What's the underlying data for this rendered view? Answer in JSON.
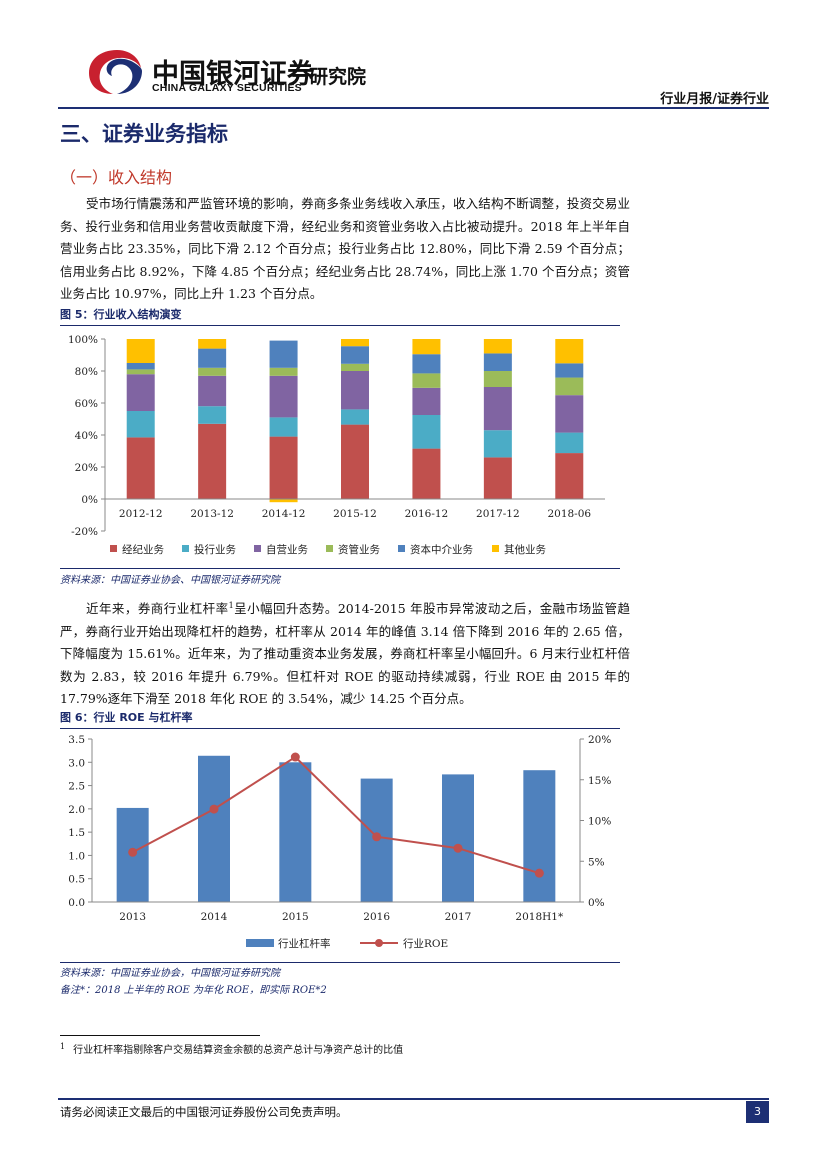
{
  "header": {
    "brand_cn": "中国银河证券",
    "brand_en": "CHINA GALAXY SECURITIES",
    "institute": "研究院",
    "report_type": "行业月报/证券行业"
  },
  "section_title": "三、证券业务指标",
  "sub_title": "（一）收入结构",
  "para1": "受市场行情震荡和严监管环境的影响，券商多条业务线收入承压，收入结构不断调整，投资交易业务、投行业务和信用业务营收贡献度下滑，经纪业务和资管业务收入占比被动提升。2018 年上半年自营业务占比 23.35%，同比下滑 2.12 个百分点；投行业务占比 12.80%，同比下滑 2.59 个百分点；信用业务占比 8.92%，下降 4.85 个百分点；经纪业务占比 28.74%，同比上涨 1.70 个百分点；资管业务占比 10.97%，同比上升 1.23 个百分点。",
  "fig5_title": "图 5：行业收入结构演变",
  "fig5_source": "资料来源：中国证券业协会、中国银河证券研究院",
  "para2_a": "近年来，券商行业杠杆率",
  "para2_sup": "1",
  "para2_b": "呈小幅回升态势。2014-2015 年股市异常波动之后，金融市场监管趋严，券商行业开始出现降杠杆的趋势，杠杆率从 2014 年的峰值 3.14 倍下降到 2016 年的 2.65 倍，下降幅度为 15.61%。近年来，为了推动重资本业务发展，券商杠杆率呈小幅回升。6 月末行业杠杆倍数为 2.83，较 2016 年提升 6.79%。但杠杆对 ROE 的驱动持续减弱，行业 ROE 由 2015 年的 17.79%逐年下滑至 2018 年化 ROE 的 3.54%，减少 14.25 个百分点。",
  "fig6_title": "图 6：行业 ROE 与杠杆率",
  "fig6_source": "资料来源：中国证券业协会，中国银河证券研究院",
  "fig6_note": "备注*：2018 上半年的 ROE 为年化 ROE，即实际 ROE*2",
  "footnote_num": "1",
  "footnote": "行业杠杆率指剔除客户交易结算资金余额的总资产总计与净资产总计的比值",
  "footer": {
    "disclaimer": "请务必阅读正文最后的中国银河证券股份公司免责声明。",
    "page": "3"
  },
  "colors": {
    "brand_navy": "#1d2f74",
    "logo_red": "#c8202f",
    "heading_red": "#c0392b"
  },
  "chart_data": [
    {
      "type": "bar",
      "stacked": true,
      "title": "图 5：行业收入结构演变",
      "categories": [
        "2012-12",
        "2013-12",
        "2014-12",
        "2015-12",
        "2016-12",
        "2017-12",
        "2018-06"
      ],
      "ylim": [
        -20,
        100
      ],
      "yticks": [
        "-20%",
        "0%",
        "20%",
        "40%",
        "60%",
        "80%",
        "100%"
      ],
      "series": [
        {
          "name": "经纪业务",
          "color": "#c0504d",
          "values": [
            38.5,
            47,
            39,
            46.5,
            31.5,
            26,
            28.7
          ]
        },
        {
          "name": "投行业务",
          "color": "#4bacc6",
          "values": [
            16.5,
            11,
            12,
            9.5,
            21,
            17,
            12.8
          ]
        },
        {
          "name": "自营业务",
          "color": "#8064a2",
          "values": [
            23,
            19,
            26,
            24,
            17,
            27,
            23.4
          ]
        },
        {
          "name": "资管业务",
          "color": "#9bbb59",
          "values": [
            3,
            5,
            5,
            4.5,
            9,
            10,
            11
          ]
        },
        {
          "name": "资本中介业务",
          "color": "#4f81bd",
          "values": [
            4,
            12,
            17,
            11,
            12,
            11,
            8.9
          ]
        },
        {
          "name": "其他业务",
          "color": "#ffc000",
          "values": [
            15,
            6,
            -2,
            4.5,
            9.5,
            9,
            15.2
          ]
        }
      ]
    },
    {
      "type": "bar+line",
      "title": "图 6：行业 ROE 与杠杆率",
      "categories": [
        "2013",
        "2014",
        "2015",
        "2016",
        "2017",
        "2018H1*"
      ],
      "left_axis": {
        "ylim": [
          0,
          3.5
        ],
        "ticks": [
          "0.0",
          "0.5",
          "1.0",
          "1.5",
          "2.0",
          "2.5",
          "3.0",
          "3.5"
        ]
      },
      "right_axis": {
        "ylim": [
          0,
          20
        ],
        "ticks": [
          "0%",
          "5%",
          "10%",
          "15%",
          "20%"
        ]
      },
      "series": [
        {
          "name": "行业杠杆率",
          "type": "bar",
          "axis": "left",
          "color": "#4f81bd",
          "values": [
            2.02,
            3.14,
            3.0,
            2.65,
            2.74,
            2.83
          ]
        },
        {
          "name": "行业ROE",
          "type": "line",
          "axis": "right",
          "color": "#c0504d",
          "values": [
            6.1,
            11.4,
            17.79,
            8.0,
            6.6,
            3.54
          ]
        }
      ]
    }
  ]
}
